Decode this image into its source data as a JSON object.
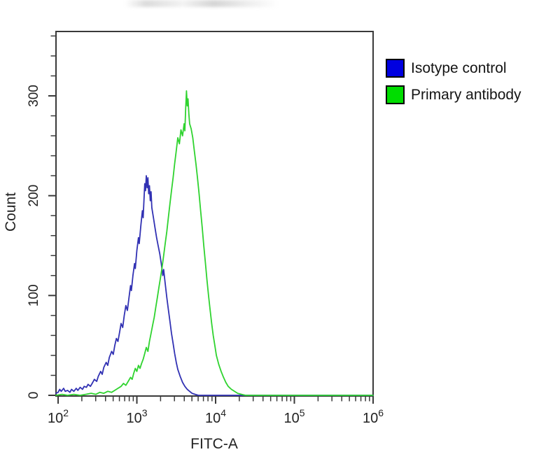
{
  "chart_data": {
    "type": "line",
    "subtype": "flow-cytometry-overlay-histogram",
    "title": "",
    "xlabel": "FITC-A",
    "ylabel": "Count",
    "x_scale": "log10",
    "xlim_log10": [
      1.973,
      6.0
    ],
    "ylim": [
      0,
      365
    ],
    "grid": false,
    "frame_color": "#3a3a3a",
    "x_major_ticks": [
      {
        "base": "10",
        "exp": "2",
        "log10": 2
      },
      {
        "base": "10",
        "exp": "3",
        "log10": 3
      },
      {
        "base": "10",
        "exp": "4",
        "log10": 4
      },
      {
        "base": "10",
        "exp": "5",
        "log10": 5
      },
      {
        "base": "10",
        "exp": "6",
        "log10": 6
      }
    ],
    "y_major_ticks": [
      {
        "label": "0",
        "value": 0
      },
      {
        "label": "100",
        "value": 100
      },
      {
        "label": "200",
        "value": 200
      },
      {
        "label": "300",
        "value": 300
      }
    ],
    "y_minor_step": 20,
    "y_minor_max": 360,
    "legend_position": "outside-top-right",
    "legend": [
      {
        "label": "Isotype control",
        "swatch_color": "#0000e0"
      },
      {
        "label": "Primary antibody",
        "swatch_color": "#00dd00"
      }
    ],
    "series": [
      {
        "name": "Isotype control",
        "color": "#3131b3",
        "peak": {
          "x_approx": 1300,
          "count": 220
        },
        "points_log10x_count": [
          [
            1.973,
            2
          ],
          [
            2.0,
            3
          ],
          [
            2.02,
            6
          ],
          [
            2.04,
            4
          ],
          [
            2.07,
            7
          ],
          [
            2.09,
            4
          ],
          [
            2.12,
            5
          ],
          [
            2.15,
            3
          ],
          [
            2.17,
            6
          ],
          [
            2.2,
            4
          ],
          [
            2.23,
            7
          ],
          [
            2.25,
            5
          ],
          [
            2.28,
            8
          ],
          [
            2.31,
            6
          ],
          [
            2.33,
            9
          ],
          [
            2.36,
            8
          ],
          [
            2.38,
            11
          ],
          [
            2.41,
            9
          ],
          [
            2.44,
            13
          ],
          [
            2.46,
            16
          ],
          [
            2.49,
            14
          ],
          [
            2.51,
            19
          ],
          [
            2.54,
            24
          ],
          [
            2.56,
            21
          ],
          [
            2.58,
            28
          ],
          [
            2.61,
            33
          ],
          [
            2.63,
            30
          ],
          [
            2.65,
            38
          ],
          [
            2.68,
            44
          ],
          [
            2.7,
            41
          ],
          [
            2.72,
            50
          ],
          [
            2.74,
            57
          ],
          [
            2.76,
            54
          ],
          [
            2.78,
            63
          ],
          [
            2.8,
            72
          ],
          [
            2.82,
            68
          ],
          [
            2.84,
            80
          ],
          [
            2.86,
            90
          ],
          [
            2.88,
            85
          ],
          [
            2.9,
            98
          ],
          [
            2.92,
            110
          ],
          [
            2.93,
            105
          ],
          [
            2.95,
            120
          ],
          [
            2.97,
            132
          ],
          [
            2.98,
            127
          ],
          [
            3.0,
            145
          ],
          [
            3.02,
            158
          ],
          [
            3.03,
            152
          ],
          [
            3.05,
            170
          ],
          [
            3.07,
            185
          ],
          [
            3.08,
            178
          ],
          [
            3.09,
            196
          ],
          [
            3.1,
            212
          ],
          [
            3.11,
            205
          ],
          [
            3.12,
            220
          ],
          [
            3.13,
            208
          ],
          [
            3.14,
            218
          ],
          [
            3.15,
            202
          ],
          [
            3.16,
            210
          ],
          [
            3.17,
            195
          ],
          [
            3.18,
            204
          ],
          [
            3.19,
            188
          ],
          [
            3.21,
            178
          ],
          [
            3.23,
            168
          ],
          [
            3.25,
            158
          ],
          [
            3.27,
            150
          ],
          [
            3.29,
            142
          ],
          [
            3.31,
            132
          ],
          [
            3.33,
            120
          ],
          [
            3.34,
            126
          ],
          [
            3.36,
            112
          ],
          [
            3.38,
            98
          ],
          [
            3.4,
            86
          ],
          [
            3.42,
            74
          ],
          [
            3.44,
            62
          ],
          [
            3.46,
            52
          ],
          [
            3.48,
            42
          ],
          [
            3.5,
            33
          ],
          [
            3.52,
            26
          ],
          [
            3.55,
            19
          ],
          [
            3.58,
            13
          ],
          [
            3.61,
            9
          ],
          [
            3.64,
            6
          ],
          [
            3.67,
            4
          ],
          [
            3.7,
            2
          ],
          [
            3.74,
            1
          ],
          [
            3.78,
            0
          ],
          [
            4.2,
            0
          ],
          [
            4.8,
            0
          ],
          [
            5.4,
            0
          ],
          [
            6.0,
            0
          ]
        ]
      },
      {
        "name": "Primary antibody",
        "color": "#2fd32f",
        "peak": {
          "x_approx": 4300,
          "count": 300
        },
        "points_log10x_count": [
          [
            1.973,
            0
          ],
          [
            2.05,
            1
          ],
          [
            2.12,
            0
          ],
          [
            2.2,
            1
          ],
          [
            2.28,
            0
          ],
          [
            2.35,
            1
          ],
          [
            2.42,
            2
          ],
          [
            2.48,
            1
          ],
          [
            2.53,
            3
          ],
          [
            2.58,
            2
          ],
          [
            2.63,
            4
          ],
          [
            2.68,
            3
          ],
          [
            2.72,
            5
          ],
          [
            2.76,
            7
          ],
          [
            2.8,
            9
          ],
          [
            2.83,
            12
          ],
          [
            2.86,
            10
          ],
          [
            2.89,
            14
          ],
          [
            2.92,
            18
          ],
          [
            2.94,
            16
          ],
          [
            2.96,
            22
          ],
          [
            2.98,
            27
          ],
          [
            3.0,
            24
          ],
          [
            3.02,
            30
          ],
          [
            3.04,
            27
          ],
          [
            3.06,
            32
          ],
          [
            3.08,
            36
          ],
          [
            3.1,
            42
          ],
          [
            3.12,
            48
          ],
          [
            3.14,
            44
          ],
          [
            3.16,
            54
          ],
          [
            3.18,
            62
          ],
          [
            3.2,
            70
          ],
          [
            3.22,
            78
          ],
          [
            3.24,
            88
          ],
          [
            3.26,
            98
          ],
          [
            3.28,
            108
          ],
          [
            3.3,
            118
          ],
          [
            3.32,
            128
          ],
          [
            3.34,
            140
          ],
          [
            3.36,
            152
          ],
          [
            3.38,
            164
          ],
          [
            3.4,
            178
          ],
          [
            3.42,
            192
          ],
          [
            3.44,
            205
          ],
          [
            3.46,
            218
          ],
          [
            3.48,
            232
          ],
          [
            3.5,
            245
          ],
          [
            3.52,
            258
          ],
          [
            3.54,
            252
          ],
          [
            3.56,
            266
          ],
          [
            3.58,
            260
          ],
          [
            3.6,
            272
          ],
          [
            3.61,
            265
          ],
          [
            3.62,
            288
          ],
          [
            3.63,
            305
          ],
          [
            3.64,
            290
          ],
          [
            3.65,
            297
          ],
          [
            3.66,
            282
          ],
          [
            3.67,
            272
          ],
          [
            3.69,
            267
          ],
          [
            3.71,
            258
          ],
          [
            3.73,
            245
          ],
          [
            3.75,
            232
          ],
          [
            3.77,
            218
          ],
          [
            3.79,
            202
          ],
          [
            3.81,
            185
          ],
          [
            3.83,
            168
          ],
          [
            3.85,
            150
          ],
          [
            3.87,
            133
          ],
          [
            3.89,
            116
          ],
          [
            3.91,
            100
          ],
          [
            3.93,
            86
          ],
          [
            3.95,
            72
          ],
          [
            3.97,
            60
          ],
          [
            3.99,
            50
          ],
          [
            4.01,
            40
          ],
          [
            4.04,
            31
          ],
          [
            4.07,
            24
          ],
          [
            4.1,
            18
          ],
          [
            4.13,
            13
          ],
          [
            4.16,
            9
          ],
          [
            4.2,
            6
          ],
          [
            4.24,
            4
          ],
          [
            4.28,
            2
          ],
          [
            4.33,
            1
          ],
          [
            4.38,
            0
          ],
          [
            4.7,
            0
          ],
          [
            5.1,
            0
          ],
          [
            5.6,
            0
          ],
          [
            6.0,
            0
          ]
        ]
      }
    ]
  }
}
